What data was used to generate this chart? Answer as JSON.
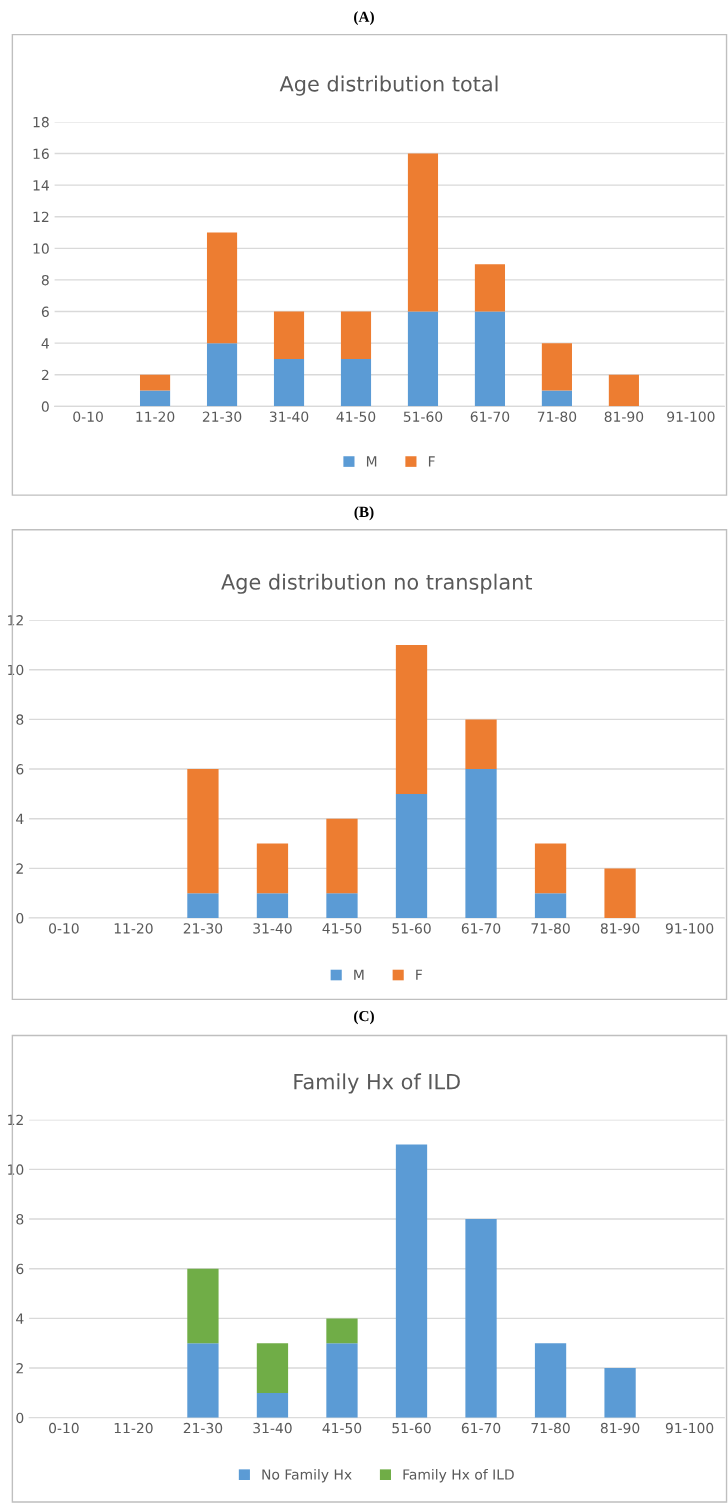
{
  "chart_data": [
    {
      "type": "bar",
      "stacked": true,
      "title": "Age distribution total",
      "annotations": [
        "(A)"
      ],
      "categories": [
        "0-10",
        "11-20",
        "21-30",
        "31-40",
        "41-50",
        "51-60",
        "61-70",
        "71-80",
        "81-90",
        "91-100"
      ],
      "series": [
        {
          "name": "M",
          "color": "#5b9bd5",
          "values": [
            0,
            1,
            4,
            3,
            3,
            6,
            6,
            1,
            0,
            0
          ]
        },
        {
          "name": "F",
          "color": "#ed7d31",
          "values": [
            0,
            1,
            7,
            3,
            3,
            10,
            3,
            3,
            2,
            0
          ]
        }
      ],
      "ylim": [
        0,
        18
      ],
      "yticks": [
        0,
        2,
        4,
        6,
        8,
        10,
        12,
        14,
        16,
        18
      ],
      "grid": "y",
      "legend": "bottom"
    },
    {
      "type": "bar",
      "stacked": true,
      "title": "Age distribution no transplant",
      "annotations": [
        "(B)"
      ],
      "categories": [
        "0-10",
        "11-20",
        "21-30",
        "31-40",
        "41-50",
        "51-60",
        "61-70",
        "71-80",
        "81-90",
        "91-100"
      ],
      "series": [
        {
          "name": "M",
          "color": "#5b9bd5",
          "values": [
            0,
            0,
            1,
            1,
            1,
            5,
            6,
            1,
            0,
            0
          ]
        },
        {
          "name": "F",
          "color": "#ed7d31",
          "values": [
            0,
            0,
            5,
            2,
            3,
            6,
            2,
            2,
            2,
            0
          ]
        }
      ],
      "ylim": [
        0,
        12
      ],
      "yticks": [
        0,
        2,
        4,
        6,
        8,
        10,
        12
      ],
      "grid": "y",
      "legend": "bottom"
    },
    {
      "type": "bar",
      "stacked": true,
      "title": "Family Hx of ILD",
      "annotations": [
        "(C)"
      ],
      "categories": [
        "0-10",
        "11-20",
        "21-30",
        "31-40",
        "41-50",
        "51-60",
        "61-70",
        "71-80",
        "81-90",
        "91-100"
      ],
      "series": [
        {
          "name": "No Family Hx",
          "color": "#5b9bd5",
          "values": [
            0,
            0,
            3,
            1,
            3,
            11,
            8,
            3,
            2,
            0
          ]
        },
        {
          "name": "Family Hx of ILD",
          "color": "#70ad47",
          "values": [
            0,
            0,
            3,
            2,
            1,
            0,
            0,
            0,
            0,
            0
          ]
        }
      ],
      "ylim": [
        0,
        12
      ],
      "yticks": [
        0,
        2,
        4,
        6,
        8,
        10,
        12
      ],
      "grid": "y",
      "legend": "bottom"
    }
  ]
}
